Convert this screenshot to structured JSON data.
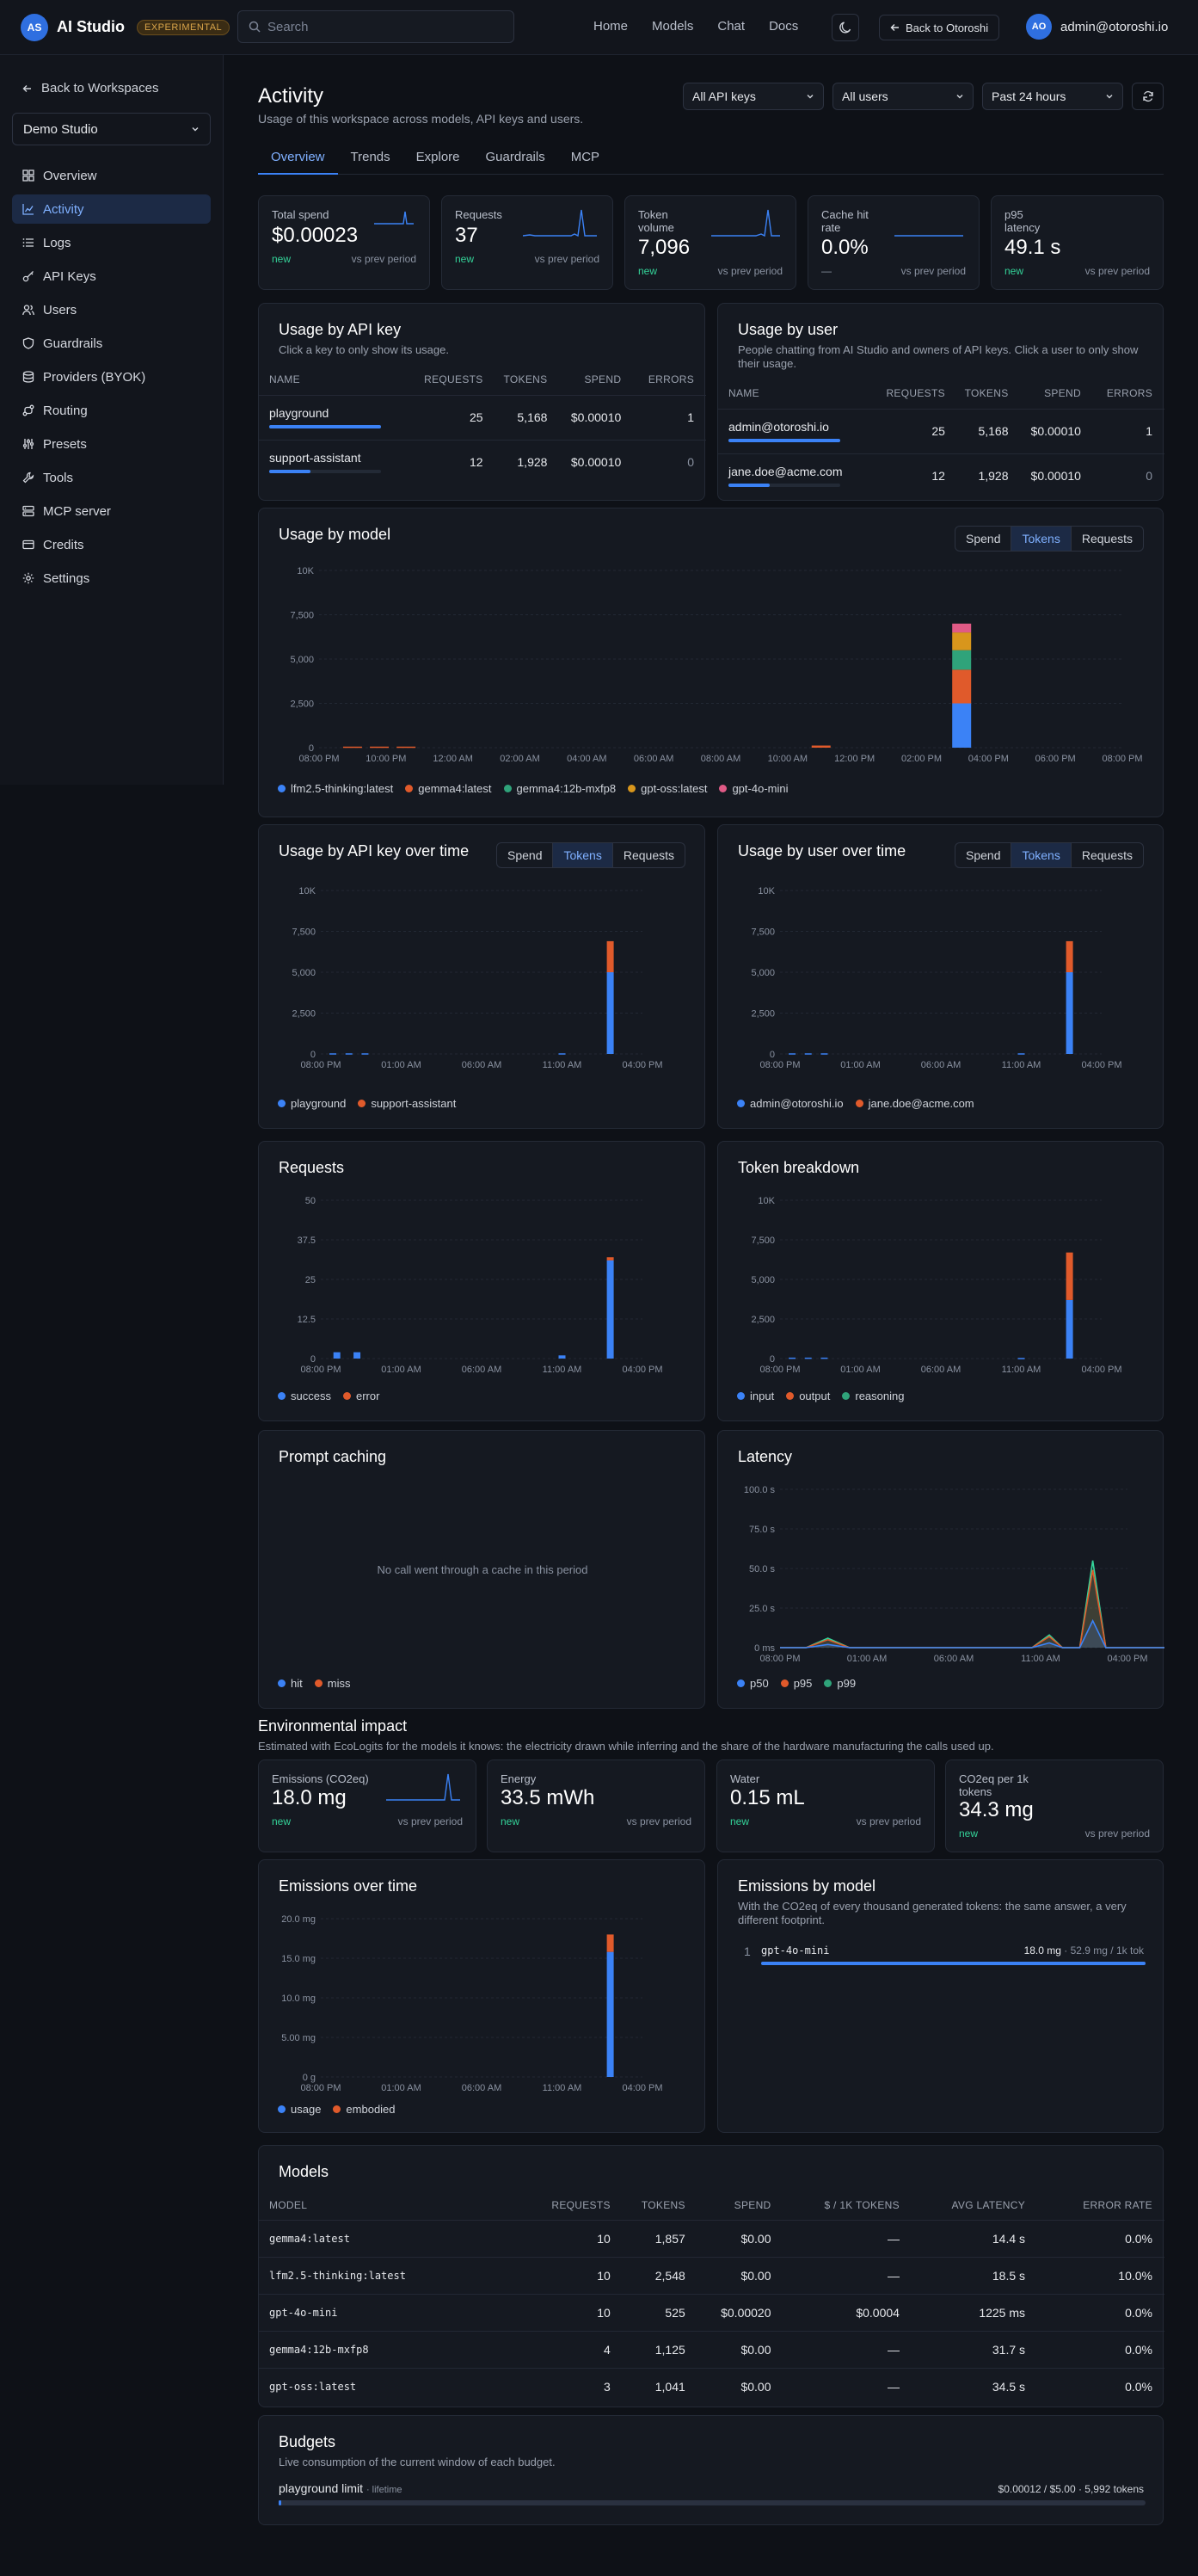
{
  "app": {
    "logo_initials": "AS",
    "name": "AI Studio",
    "badge": "EXPERIMENTAL"
  },
  "search": {
    "placeholder": "Search"
  },
  "nav": [
    "Home",
    "Models",
    "Chat",
    "Docs"
  ],
  "header": {
    "back_label": "Back to Otoroshi",
    "user_initials": "AO",
    "user_email": "admin@otoroshi.io"
  },
  "sidebar": {
    "back_label": "Back to Workspaces",
    "workspace": "Demo Studio",
    "items": [
      {
        "label": "Overview",
        "icon": "grid-icon"
      },
      {
        "label": "Activity",
        "icon": "chart-icon",
        "active": true
      },
      {
        "label": "Logs",
        "icon": "list-icon"
      },
      {
        "label": "API Keys",
        "icon": "key-icon"
      },
      {
        "label": "Users",
        "icon": "users-icon"
      },
      {
        "label": "Guardrails",
        "icon": "shield-icon"
      },
      {
        "label": "Providers (BYOK)",
        "icon": "database-icon"
      },
      {
        "label": "Routing",
        "icon": "routing-icon"
      },
      {
        "label": "Presets",
        "icon": "sliders-icon"
      },
      {
        "label": "Tools",
        "icon": "wrench-icon"
      },
      {
        "label": "MCP server",
        "icon": "server-icon"
      },
      {
        "label": "Credits",
        "icon": "card-icon"
      },
      {
        "label": "Settings",
        "icon": "gear-icon"
      }
    ]
  },
  "page": {
    "title": "Activity",
    "subtitle": "Usage of this workspace across models, API keys and users.",
    "filters": {
      "keys": "All API keys",
      "users": "All users",
      "period": "Past 24 hours"
    },
    "tabs": [
      "Overview",
      "Trends",
      "Explore",
      "Guardrails",
      "MCP"
    ]
  },
  "kpis": [
    {
      "label": "Total spend",
      "value": "$0.00023",
      "new": "new",
      "prev": "vs prev period"
    },
    {
      "label": "Requests",
      "value": "37",
      "new": "new",
      "prev": "vs prev period"
    },
    {
      "label": "Token volume",
      "value": "7,096",
      "new": "new",
      "prev": "vs prev period"
    },
    {
      "label": "Cache hit rate",
      "value": "0.0%",
      "new": "—",
      "prev": "vs prev period"
    },
    {
      "label": "p95 latency",
      "value": "49.1 s",
      "new": "new",
      "prev": "vs prev period"
    }
  ],
  "usage_by_key": {
    "title": "Usage by API key",
    "subtitle": "Click a key to only show its usage.",
    "columns": [
      "NAME",
      "REQUESTS",
      "TOKENS",
      "SPEND",
      "ERRORS"
    ],
    "rows": [
      {
        "name": "playground",
        "requests": "25",
        "tokens": "5,168",
        "spend": "$0.00010",
        "errors": "1",
        "share": 1.0
      },
      {
        "name": "support-assistant",
        "requests": "12",
        "tokens": "1,928",
        "spend": "$0.00010",
        "errors": "0",
        "share": 0.37
      }
    ]
  },
  "usage_by_user": {
    "title": "Usage by user",
    "subtitle": "People chatting from AI Studio and owners of API keys. Click a user to only show their usage.",
    "columns": [
      "NAME",
      "REQUESTS",
      "TOKENS",
      "SPEND",
      "ERRORS"
    ],
    "rows": [
      {
        "name": "admin@otoroshi.io",
        "requests": "25",
        "tokens": "5,168",
        "spend": "$0.00010",
        "errors": "1",
        "share": 1.0
      },
      {
        "name": "jane.doe@acme.com",
        "requests": "12",
        "tokens": "1,928",
        "spend": "$0.00010",
        "errors": "0",
        "share": 0.37
      }
    ]
  },
  "metric_toggle": [
    "Spend",
    "Tokens",
    "Requests"
  ],
  "colors": {
    "blue": "#3b82f6",
    "orange": "#e05a2b",
    "green": "#2fa37a",
    "amber": "#d8961c",
    "pink": "#e05a86",
    "teal": "#34d399"
  },
  "model_chart": {
    "title": "Usage by model",
    "y_ticks": [
      "10K",
      "7,500",
      "5,000",
      "2,500",
      "0"
    ],
    "x_ticks": [
      "08:00 PM",
      "10:00 PM",
      "12:00 AM",
      "02:00 AM",
      "04:00 AM",
      "06:00 AM",
      "08:00 AM",
      "10:00 AM",
      "12:00 PM",
      "02:00 PM",
      "04:00 PM",
      "06:00 PM",
      "08:00 PM"
    ],
    "legend": [
      "lfm2.5-thinking:latest",
      "gemma4:latest",
      "gemma4:12b-mxfp8",
      "gpt-oss:latest",
      "gpt-4o-mini"
    ]
  },
  "key_time_chart": {
    "title": "Usage by API key over time",
    "y_ticks": [
      "10K",
      "7,500",
      "5,000",
      "2,500",
      "0"
    ],
    "x_ticks": [
      "08:00 PM",
      "01:00 AM",
      "06:00 AM",
      "11:00 AM",
      "04:00 PM"
    ],
    "legend": [
      "playground",
      "support-assistant"
    ]
  },
  "user_time_chart": {
    "title": "Usage by user over time",
    "y_ticks": [
      "10K",
      "7,500",
      "5,000",
      "2,500",
      "0"
    ],
    "x_ticks": [
      "08:00 PM",
      "01:00 AM",
      "06:00 AM",
      "11:00 AM",
      "04:00 PM"
    ],
    "legend": [
      "admin@otoroshi.io",
      "jane.doe@acme.com"
    ]
  },
  "requests_chart": {
    "title": "Requests",
    "y_ticks": [
      "50",
      "37.5",
      "25",
      "12.5",
      "0"
    ],
    "x_ticks": [
      "08:00 PM",
      "01:00 AM",
      "06:00 AM",
      "11:00 AM",
      "04:00 PM"
    ],
    "legend": [
      "success",
      "error"
    ]
  },
  "token_chart": {
    "title": "Token breakdown",
    "y_ticks": [
      "10K",
      "7,500",
      "5,000",
      "2,500",
      "0"
    ],
    "x_ticks": [
      "08:00 PM",
      "01:00 AM",
      "06:00 AM",
      "11:00 AM",
      "04:00 PM"
    ],
    "legend": [
      "input",
      "output",
      "reasoning"
    ]
  },
  "caching_chart": {
    "title": "Prompt caching",
    "empty": "No call went through a cache in this period",
    "legend": [
      "hit",
      "miss"
    ]
  },
  "latency_chart": {
    "title": "Latency",
    "y_ticks": [
      "100.0 s",
      "75.0 s",
      "50.0 s",
      "25.0 s",
      "0 ms"
    ],
    "x_ticks": [
      "08:00 PM",
      "01:00 AM",
      "06:00 AM",
      "11:00 AM",
      "04:00 PM"
    ],
    "legend": [
      "p50",
      "p95",
      "p99"
    ]
  },
  "environment": {
    "title": "Environmental impact",
    "subtitle": "Estimated with EcoLogits for the models it knows: the electricity drawn while inferring and the share of the hardware manufacturing the calls used up.",
    "kpis": [
      {
        "label": "Emissions (CO2eq)",
        "value": "18.0 mg",
        "new": "new",
        "prev": "vs prev period"
      },
      {
        "label": "Energy",
        "value": "33.5 mWh",
        "new": "new",
        "prev": "vs prev period"
      },
      {
        "label": "Water",
        "value": "0.15 mL",
        "new": "new",
        "prev": "vs prev period"
      },
      {
        "label": "CO2eq per 1k tokens",
        "value": "34.3 mg",
        "new": "new",
        "prev": "vs prev period"
      }
    ]
  },
  "emissions_chart": {
    "title": "Emissions over time",
    "y_ticks": [
      "20.0 mg",
      "15.0 mg",
      "10.0 mg",
      "5.00 mg",
      "0 g"
    ],
    "x_ticks": [
      "08:00 PM",
      "01:00 AM",
      "06:00 AM",
      "11:00 AM",
      "04:00 PM"
    ],
    "legend": [
      "usage",
      "embodied"
    ]
  },
  "emissions_by_model": {
    "title": "Emissions by model",
    "subtitle": "With the CO2eq of every thousand generated tokens: the same answer, a very different footprint.",
    "rows": [
      {
        "rank": "1",
        "model": "gpt-4o-mini",
        "value": "18.0 mg",
        "per": "· 52.9 mg / 1k tok",
        "share": 1.0
      }
    ]
  },
  "models_table": {
    "title": "Models",
    "columns": [
      "MODEL",
      "REQUESTS",
      "TOKENS",
      "SPEND",
      "$ / 1K TOKENS",
      "AVG LATENCY",
      "ERROR RATE"
    ],
    "rows": [
      [
        "gemma4:latest",
        "10",
        "1,857",
        "$0.00",
        "—",
        "14.4 s",
        "0.0%"
      ],
      [
        "lfm2.5-thinking:latest",
        "10",
        "2,548",
        "$0.00",
        "—",
        "18.5 s",
        "10.0%"
      ],
      [
        "gpt-4o-mini",
        "10",
        "525",
        "$0.00020",
        "$0.0004",
        "1225 ms",
        "0.0%"
      ],
      [
        "gemma4:12b-mxfp8",
        "4",
        "1,125",
        "$0.00",
        "—",
        "31.7 s",
        "0.0%"
      ],
      [
        "gpt-oss:latest",
        "3",
        "1,041",
        "$0.00",
        "—",
        "34.5 s",
        "0.0%"
      ]
    ]
  },
  "budgets": {
    "title": "Budgets",
    "subtitle": "Live consumption of the current window of each budget.",
    "items": [
      {
        "name": "playground limit",
        "window": "· lifetime",
        "usage": "$0.00012 / $5.00 · 5,992 tokens",
        "fraction": 2e-05
      }
    ]
  },
  "chart_data": [
    {
      "type": "bar",
      "title": "Usage by model",
      "ylim": [
        0,
        10000
      ],
      "x": [
        "08:00 PM",
        "10:00 PM",
        "12:00 AM",
        "02:00 AM",
        "04:00 AM",
        "06:00 AM",
        "08:00 AM",
        "10:00 AM",
        "12:00 PM",
        "02:00 PM",
        "04:00 PM",
        "06:00 PM",
        "08:00 PM"
      ],
      "series": [
        {
          "name": "lfm2.5-thinking:latest",
          "points": [
            [
              9.6,
              2500
            ]
          ]
        },
        {
          "name": "gemma4:latest",
          "points": [
            [
              0.5,
              60
            ],
            [
              0.9,
              60
            ],
            [
              1.3,
              60
            ],
            [
              7.5,
              120
            ],
            [
              9.6,
              1900
            ]
          ]
        },
        {
          "name": "gemma4:12b-mxfp8",
          "points": [
            [
              9.6,
              1100
            ]
          ]
        },
        {
          "name": "gpt-oss:latest",
          "points": [
            [
              9.6,
              1000
            ]
          ]
        },
        {
          "name": "gpt-4o-mini",
          "points": [
            [
              9.6,
              500
            ]
          ]
        }
      ]
    },
    {
      "type": "bar",
      "title": "Usage by API key over time",
      "ylim": [
        0,
        10000
      ],
      "series": [
        {
          "name": "playground",
          "points": [
            [
              0.15,
              40
            ],
            [
              0.35,
              40
            ],
            [
              0.55,
              40
            ],
            [
              3.0,
              40
            ],
            [
              3.6,
              5000
            ]
          ]
        },
        {
          "name": "support-assistant",
          "points": [
            [
              3.6,
              1900
            ]
          ]
        }
      ]
    },
    {
      "type": "bar",
      "title": "Usage by user over time",
      "ylim": [
        0,
        10000
      ],
      "series": [
        {
          "name": "admin@otoroshi.io",
          "points": [
            [
              0.15,
              40
            ],
            [
              0.35,
              40
            ],
            [
              0.55,
              40
            ],
            [
              3.0,
              40
            ],
            [
              3.6,
              5000
            ]
          ]
        },
        {
          "name": "jane.doe@acme.com",
          "points": [
            [
              3.6,
              1900
            ]
          ]
        }
      ]
    },
    {
      "type": "bar",
      "title": "Requests",
      "ylim": [
        0,
        50
      ],
      "series": [
        {
          "name": "success",
          "points": [
            [
              0.2,
              2
            ],
            [
              0.45,
              2
            ],
            [
              3.0,
              1
            ],
            [
              3.6,
              31
            ]
          ]
        },
        {
          "name": "error",
          "points": [
            [
              3.6,
              1
            ]
          ]
        }
      ]
    },
    {
      "type": "bar",
      "title": "Token breakdown",
      "ylim": [
        0,
        10000
      ],
      "series": [
        {
          "name": "input",
          "points": [
            [
              0.15,
              60
            ],
            [
              0.35,
              60
            ],
            [
              0.55,
              60
            ],
            [
              3.0,
              40
            ],
            [
              3.6,
              3700
            ]
          ]
        },
        {
          "name": "output",
          "points": [
            [
              3.6,
              3000
            ]
          ]
        },
        {
          "name": "reasoning",
          "points": []
        }
      ]
    },
    {
      "type": "line",
      "title": "Latency",
      "ylim": [
        0,
        100
      ],
      "x": [
        0,
        0.3,
        0.55,
        0.8,
        1.2,
        1.8,
        2.4,
        2.9,
        3.1,
        3.25,
        3.45,
        3.6,
        3.75,
        3.9,
        4.5
      ],
      "series": [
        {
          "name": "p50",
          "values": [
            0,
            0,
            2,
            0,
            0,
            0,
            0,
            0,
            3,
            0,
            0,
            17,
            0,
            0,
            0
          ]
        },
        {
          "name": "p95",
          "values": [
            0,
            0,
            5,
            0,
            0,
            0,
            0,
            0,
            7,
            0,
            0,
            49,
            0,
            0,
            0
          ]
        },
        {
          "name": "p99",
          "values": [
            0,
            0,
            6,
            0,
            0,
            0,
            0,
            0,
            8,
            0,
            0,
            55,
            0,
            0,
            0
          ]
        }
      ]
    },
    {
      "type": "bar",
      "title": "Emissions over time",
      "ylim": [
        0,
        20
      ],
      "series": [
        {
          "name": "usage",
          "points": [
            [
              3.6,
              15.8
            ]
          ]
        },
        {
          "name": "embodied",
          "points": [
            [
              3.6,
              2.2
            ]
          ]
        }
      ]
    }
  ]
}
